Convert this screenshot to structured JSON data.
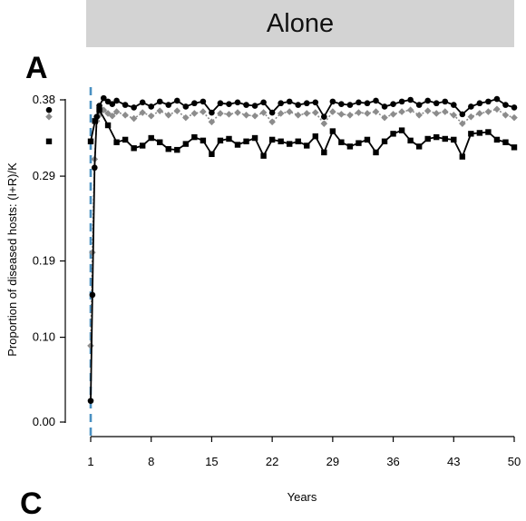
{
  "banner": {
    "title": "Alone"
  },
  "panels": {
    "first": "A",
    "next": "C"
  },
  "chart_data": {
    "type": "line",
    "title": "",
    "xlabel": "Years",
    "ylabel": "Proportion of diseased hosts: (I+R)/K",
    "xlim": [
      1,
      50
    ],
    "ylim": [
      0.0,
      0.38
    ],
    "xticks": [
      1,
      8,
      15,
      22,
      29,
      36,
      43,
      50
    ],
    "yticks": [
      0.0,
      0.1,
      0.19,
      0.29,
      0.38
    ],
    "ytick_labels": [
      "0.00",
      "0.10",
      "0.19",
      "0.29",
      "0.38"
    ],
    "intervention_line": {
      "x": 1,
      "style": "dashed",
      "color": "#4a90c2"
    },
    "initial_markers": [
      {
        "series": "circle",
        "y": 0.368
      },
      {
        "series": "diamond",
        "y": 0.36
      },
      {
        "series": "square",
        "y": 0.331
      }
    ],
    "grid": false,
    "legend": "none",
    "series": [
      {
        "marker": "circle",
        "color": "#000000",
        "line": "solid",
        "x": [
          1,
          1.2,
          1.45,
          1.7,
          2,
          2.5,
          3,
          3.5,
          4,
          5,
          6,
          7,
          8,
          9,
          10,
          11,
          12,
          13,
          14,
          15,
          16,
          17,
          18,
          19,
          20,
          21,
          22,
          23,
          24,
          25,
          26,
          27,
          28,
          29,
          30,
          31,
          32,
          33,
          34,
          35,
          36,
          37,
          38,
          39,
          40,
          41,
          42,
          43,
          44,
          45,
          46,
          47,
          48,
          49,
          50
        ],
        "y": [
          0.025,
          0.15,
          0.3,
          0.36,
          0.373,
          0.382,
          0.378,
          0.375,
          0.379,
          0.374,
          0.371,
          0.377,
          0.372,
          0.378,
          0.374,
          0.379,
          0.372,
          0.376,
          0.378,
          0.365,
          0.376,
          0.375,
          0.377,
          0.374,
          0.373,
          0.377,
          0.365,
          0.376,
          0.378,
          0.374,
          0.376,
          0.377,
          0.36,
          0.378,
          0.375,
          0.374,
          0.377,
          0.376,
          0.379,
          0.372,
          0.375,
          0.378,
          0.38,
          0.374,
          0.379,
          0.376,
          0.378,
          0.374,
          0.363,
          0.372,
          0.376,
          0.378,
          0.381,
          0.374,
          0.371
        ]
      },
      {
        "marker": "diamond",
        "color": "#8c8c8c",
        "line": "dotted",
        "x": [
          1,
          1.2,
          1.45,
          1.7,
          2,
          2.5,
          3,
          3.5,
          4,
          5,
          6,
          7,
          8,
          9,
          10,
          11,
          12,
          13,
          14,
          15,
          16,
          17,
          18,
          19,
          20,
          21,
          22,
          23,
          24,
          25,
          26,
          27,
          28,
          29,
          30,
          31,
          32,
          33,
          34,
          35,
          36,
          37,
          38,
          39,
          40,
          41,
          42,
          43,
          44,
          45,
          46,
          47,
          48,
          49,
          50
        ],
        "y": [
          0.09,
          0.2,
          0.31,
          0.355,
          0.362,
          0.368,
          0.364,
          0.361,
          0.366,
          0.362,
          0.358,
          0.365,
          0.361,
          0.367,
          0.362,
          0.367,
          0.359,
          0.364,
          0.366,
          0.354,
          0.364,
          0.363,
          0.365,
          0.362,
          0.361,
          0.365,
          0.354,
          0.364,
          0.366,
          0.362,
          0.364,
          0.365,
          0.352,
          0.366,
          0.363,
          0.362,
          0.365,
          0.364,
          0.366,
          0.359,
          0.363,
          0.366,
          0.368,
          0.362,
          0.367,
          0.364,
          0.366,
          0.362,
          0.352,
          0.36,
          0.364,
          0.366,
          0.369,
          0.362,
          0.359
        ]
      },
      {
        "marker": "square",
        "color": "#000000",
        "line": "solid",
        "x": [
          1,
          1.5,
          2,
          3,
          4,
          5,
          6,
          7,
          8,
          9,
          10,
          11,
          12,
          13,
          14,
          15,
          16,
          17,
          18,
          19,
          20,
          21,
          22,
          23,
          24,
          25,
          26,
          27,
          28,
          29,
          30,
          31,
          32,
          33,
          34,
          35,
          36,
          37,
          38,
          39,
          40,
          41,
          42,
          43,
          44,
          45,
          46,
          47,
          48,
          49,
          50
        ],
        "y": [
          0.331,
          0.355,
          0.368,
          0.35,
          0.33,
          0.333,
          0.323,
          0.326,
          0.335,
          0.33,
          0.322,
          0.321,
          0.328,
          0.336,
          0.332,
          0.316,
          0.332,
          0.334,
          0.327,
          0.331,
          0.335,
          0.314,
          0.333,
          0.331,
          0.328,
          0.331,
          0.326,
          0.337,
          0.318,
          0.343,
          0.33,
          0.325,
          0.329,
          0.333,
          0.318,
          0.331,
          0.34,
          0.344,
          0.332,
          0.325,
          0.334,
          0.336,
          0.334,
          0.333,
          0.313,
          0.34,
          0.341,
          0.342,
          0.333,
          0.33,
          0.324
        ]
      }
    ]
  }
}
